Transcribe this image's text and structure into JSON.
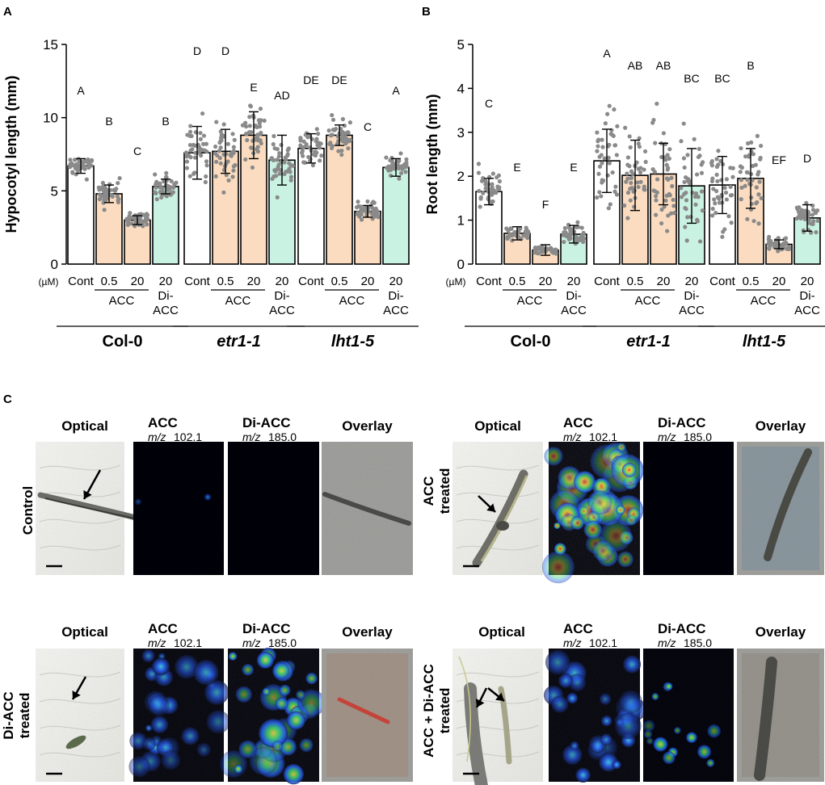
{
  "panel_letters": {
    "a": "A",
    "b": "B",
    "c": "C"
  },
  "x_labels": {
    "um": "(µM)",
    "cont": "Cont",
    "c05": "0.5",
    "c20": "20",
    "di20": "20",
    "di_a": "Di-",
    "di_b": "ACC",
    "acc": "ACC"
  },
  "genotypes": [
    "Col-0",
    "etr1-1",
    "lht1-5"
  ],
  "colors": {
    "cont": "#ffffff",
    "acc": "#fbdcc0",
    "diacc": "#c9f2e2",
    "points": "#8a8a8a"
  },
  "chart_data": [
    {
      "type": "bar",
      "ylabel": "Hypocotyl length (mm)",
      "ylim": [
        0,
        15
      ],
      "yticks": [
        0,
        5,
        10,
        15
      ],
      "categories": [
        "Cont",
        "0.5",
        "20",
        "20 Di-ACC",
        "Cont",
        "0.5",
        "20",
        "20 Di-ACC",
        "Cont",
        "0.5",
        "20",
        "20 Di-ACC"
      ],
      "groups": [
        "Col-0",
        "Col-0",
        "Col-0",
        "Col-0",
        "etr1-1",
        "etr1-1",
        "etr1-1",
        "etr1-1",
        "lht1-5",
        "lht1-5",
        "lht1-5",
        "lht1-5"
      ],
      "treatment": [
        "cont",
        "acc",
        "acc",
        "diacc",
        "cont",
        "acc",
        "acc",
        "diacc",
        "cont",
        "acc",
        "acc",
        "diacc"
      ],
      "values": [
        6.7,
        4.8,
        3.0,
        5.3,
        7.6,
        7.7,
        8.8,
        7.1,
        7.9,
        8.8,
        3.6,
        6.6
      ],
      "sd": [
        0.5,
        0.6,
        0.3,
        0.5,
        1.8,
        1.5,
        1.6,
        1.7,
        1.0,
        0.7,
        0.4,
        0.6
      ],
      "spread": [
        0.9,
        1.2,
        0.7,
        1.0,
        2.8,
        2.5,
        2.5,
        2.5,
        1.6,
        1.5,
        0.8,
        1.0
      ],
      "letters": [
        "A",
        "B",
        "C",
        "B",
        "D",
        "D",
        "E",
        "AD",
        "DE",
        "DE",
        "C",
        "A"
      ]
    },
    {
      "type": "bar",
      "ylabel": "Root length (mm)",
      "ylim": [
        0,
        5
      ],
      "yticks": [
        0,
        1,
        2,
        3,
        4,
        5
      ],
      "categories": [
        "Cont",
        "0.5",
        "20",
        "20 Di-ACC",
        "Cont",
        "0.5",
        "20",
        "20 Di-ACC",
        "Cont",
        "0.5",
        "20",
        "20 Di-ACC"
      ],
      "groups": [
        "Col-0",
        "Col-0",
        "Col-0",
        "Col-0",
        "etr1-1",
        "etr1-1",
        "etr1-1",
        "etr1-1",
        "lht1-5",
        "lht1-5",
        "lht1-5",
        "lht1-5"
      ],
      "treatment": [
        "cont",
        "acc",
        "acc",
        "diacc",
        "cont",
        "acc",
        "acc",
        "diacc",
        "cont",
        "acc",
        "acc",
        "diacc"
      ],
      "values": [
        1.65,
        0.7,
        0.32,
        0.68,
        2.35,
        2.02,
        2.05,
        1.78,
        1.8,
        1.95,
        0.45,
        1.05
      ],
      "sd": [
        0.3,
        0.15,
        0.12,
        0.2,
        0.72,
        0.8,
        0.7,
        0.85,
        0.65,
        0.68,
        0.1,
        0.3
      ],
      "spread": [
        0.6,
        0.2,
        0.12,
        0.3,
        1.4,
        1.4,
        1.4,
        1.3,
        1.3,
        1.4,
        0.2,
        0.5
      ],
      "letters": [
        "C",
        "E",
        "F",
        "E",
        "A",
        "AB",
        "AB",
        "BC",
        "BC",
        "B",
        "EF",
        "D"
      ]
    }
  ],
  "panel_c": {
    "col_optical": "Optical",
    "col_acc": "ACC",
    "col_diacc": "Di-ACC",
    "col_overlay": "Overlay",
    "mz_italic": "m/z",
    "mz_acc": "102.1",
    "mz_diacc": "185.0",
    "rows": {
      "r1": "Control",
      "r2a": "ACC",
      "r2b": "treated",
      "r3a": "Di-ACC",
      "r3b": "treated",
      "r4a": "ACC + Di-ACC",
      "r4b": "treated"
    }
  }
}
